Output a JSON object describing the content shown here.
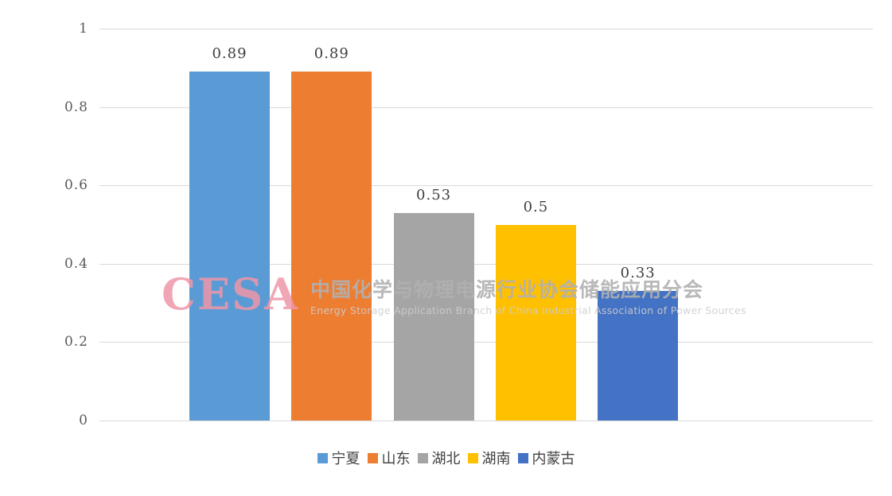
{
  "chart_data": {
    "type": "bar",
    "categories": [
      "宁夏",
      "山东",
      "湖北",
      "湖南",
      "内蒙古"
    ],
    "values": [
      0.89,
      0.89,
      0.53,
      0.5,
      0.33
    ],
    "value_labels": [
      "0.89",
      "0.89",
      "0.53",
      "0.5",
      "0.33"
    ],
    "colors": [
      "#5B9BD5",
      "#ED7D31",
      "#A5A5A5",
      "#FFC000",
      "#4472C4"
    ],
    "title": "",
    "xlabel": "",
    "ylabel": "",
    "ylim": [
      0,
      1
    ],
    "yticks": [
      0,
      0.2,
      0.4,
      0.6,
      0.8,
      1
    ],
    "ytick_labels": [
      "0",
      "0.2",
      "0.4",
      "0.6",
      "0.8",
      "1"
    ],
    "grid": true,
    "legend_position": "bottom"
  },
  "watermark": {
    "logo_text": "CESA",
    "title_cn": "中国化学与物理电源行业协会储能应用分会",
    "subtitle_en": "Energy Storage Application Branch of China Industrial Association of Power Sources",
    "logo_color": "rgba(238, 150, 168, 0.85)",
    "title_color": "rgba(176, 176, 176, 0.9)",
    "subtitle_color": "rgba(205, 205, 205, 0.9)"
  }
}
